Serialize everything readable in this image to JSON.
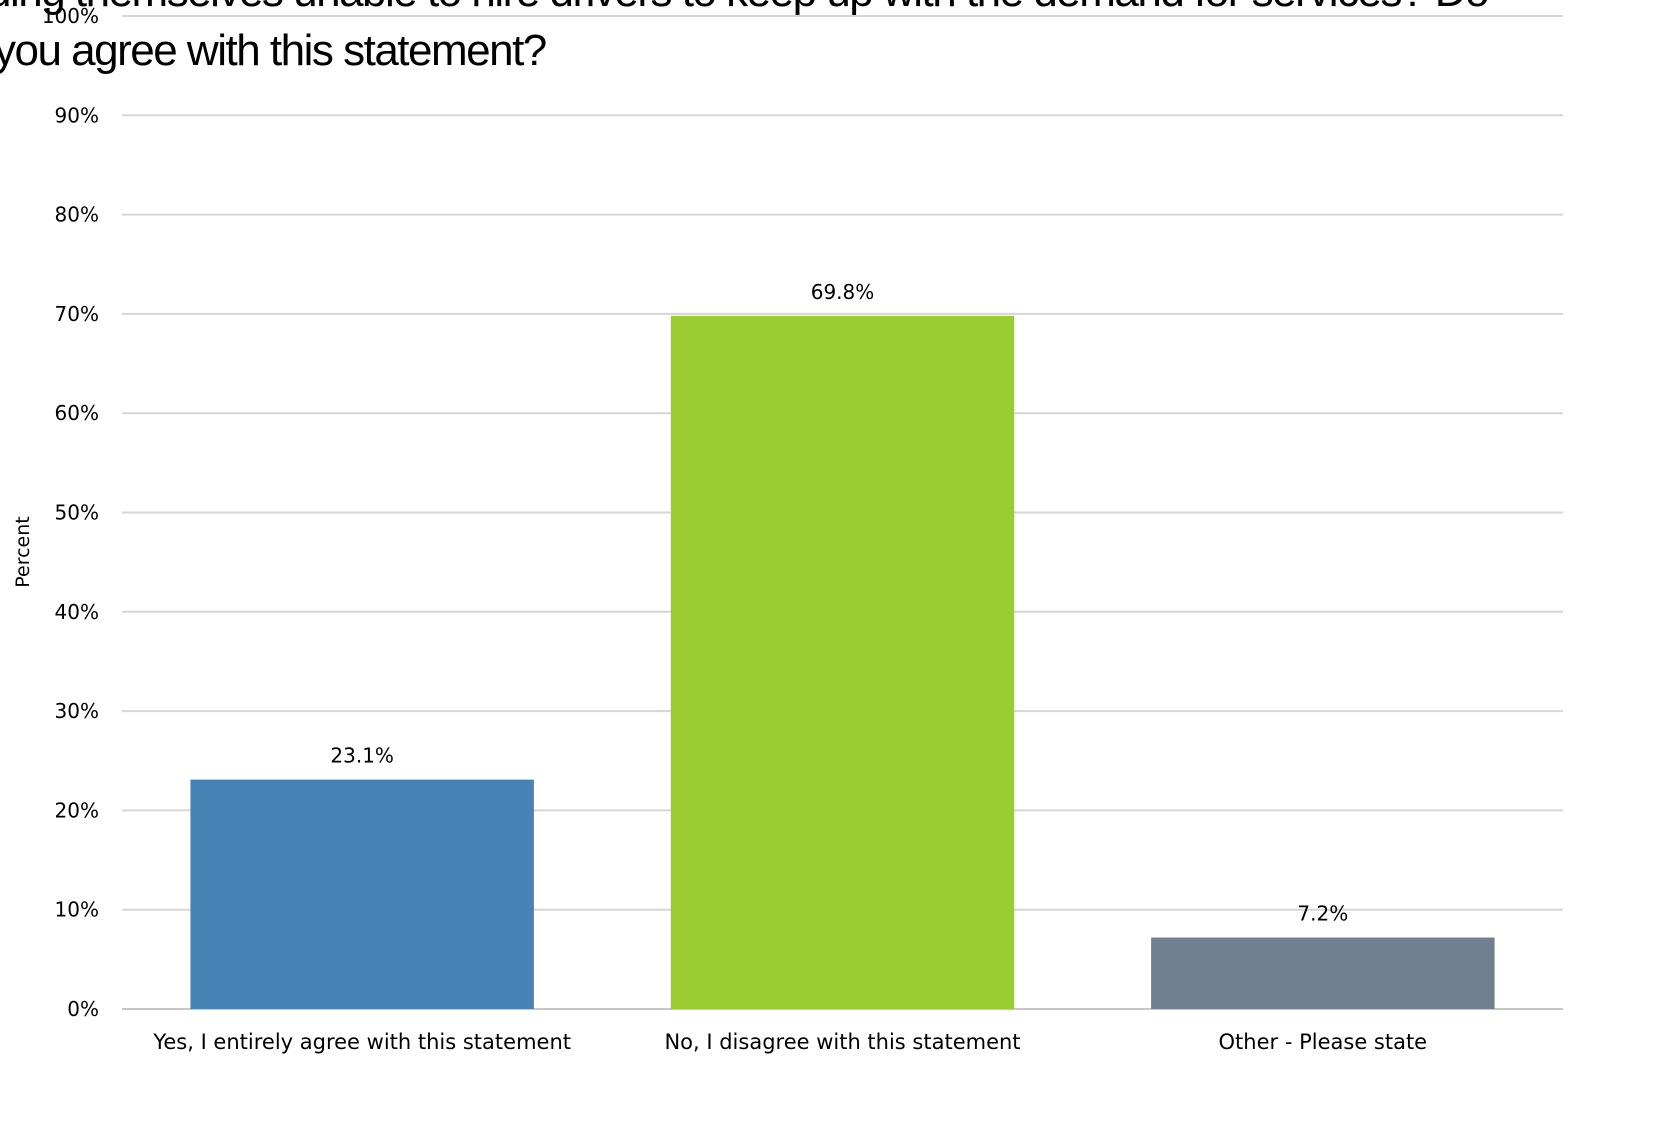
{
  "chart_data": {
    "type": "bar",
    "title": {
      "line1": "finding themselves unable to hire drivers to keep up with the demand for services? Do",
      "line2": "you agree with this statement?"
    },
    "xlabel": "",
    "ylabel": "Percent",
    "ylim": [
      0,
      100
    ],
    "yticks": [
      "0%",
      "10%",
      "20%",
      "30%",
      "40%",
      "50%",
      "60%",
      "70%",
      "80%",
      "90%",
      "100%"
    ],
    "grid": true,
    "legend": "none",
    "categories": [
      "Yes, I entirely agree with this statement",
      "No, I disagree with this statement",
      "Other - Please state"
    ],
    "values": [
      23.1,
      69.8,
      7.2
    ],
    "data_labels": [
      "23.1%",
      "69.8%",
      "7.2%"
    ],
    "colors": [
      "#4682b4",
      "#9acd32",
      "#708090"
    ]
  }
}
